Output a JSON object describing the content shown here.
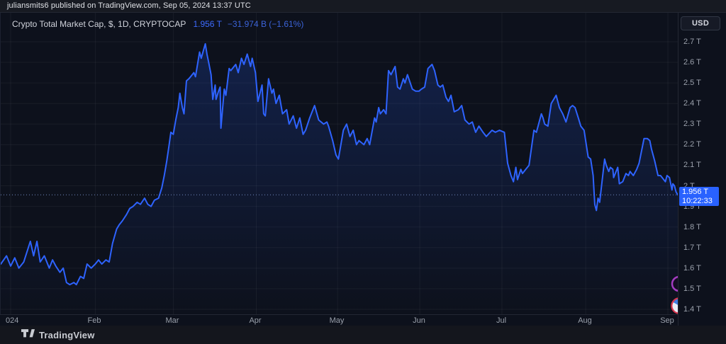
{
  "attribution": {
    "text": "juliansmits6 published on TradingView.com, Sep 05, 2024 13:37 UTC"
  },
  "legend": {
    "title": "Crypto Total Market Cap, $, 1D, CRYPTOCAP",
    "value": "1.956 T",
    "change": "−31.974 B (−1.61%)"
  },
  "price_scale": {
    "currency_button": "USD",
    "current_price_label": "1.956 T",
    "countdown": "10:22:33",
    "y_ticks": [
      {
        "v": 2.7,
        "label": "2.7 T"
      },
      {
        "v": 2.6,
        "label": "2.6 T"
      },
      {
        "v": 2.5,
        "label": "2.5 T"
      },
      {
        "v": 2.4,
        "label": "2.4 T"
      },
      {
        "v": 2.3,
        "label": "2.3 T"
      },
      {
        "v": 2.2,
        "label": "2.2 T"
      },
      {
        "v": 2.1,
        "label": "2.1 T"
      },
      {
        "v": 2.0,
        "label": "2 T"
      },
      {
        "v": 1.9,
        "label": "1.9 T"
      },
      {
        "v": 1.8,
        "label": "1.8 T"
      },
      {
        "v": 1.7,
        "label": "1.7 T"
      },
      {
        "v": 1.6,
        "label": "1.6 T"
      },
      {
        "v": 1.5,
        "label": "1.5 T"
      },
      {
        "v": 1.4,
        "label": "1.4 T"
      }
    ]
  },
  "time_scale": {
    "x_ticks": [
      {
        "label": "024",
        "t": 0.04,
        "year": true
      },
      {
        "label": "Feb",
        "t": 1.03
      },
      {
        "label": "Mar",
        "t": 1.98
      },
      {
        "label": "Apr",
        "t": 2.99
      },
      {
        "label": "May",
        "t": 3.98
      },
      {
        "label": "Jun",
        "t": 4.98
      },
      {
        "label": "Jul",
        "t": 5.98
      },
      {
        "label": "Aug",
        "t": 7.0
      },
      {
        "label": "Sep",
        "t": 8.0
      }
    ]
  },
  "footer": {
    "brand": "TradingView"
  },
  "colors": {
    "accent": "#2962ff",
    "line": "#2e63ff",
    "fill_top": "rgba(41,98,255,0.20)",
    "fill_bottom": "rgba(41,98,255,0.0)",
    "grid": "rgba(255,255,255,0.05)",
    "price_line": "#7489c0",
    "badge_bg": "#2962ff",
    "marker1_ring": "#a33cc0",
    "marker2_ring": "#d8374f",
    "marker2_fill": "#e8eef7",
    "marker2_wedge": "#3f7de0"
  },
  "chart_data": {
    "type": "area",
    "title": "Crypto Total Market Cap",
    "symbol": "CRYPTOCAP",
    "interval": "1D",
    "currency": "USD",
    "units": "trillions USD",
    "last_value_T": 1.956,
    "change_B": -31.974,
    "change_pct": -1.61,
    "ylim_T": [
      1.4,
      2.7
    ],
    "x_range": "Jan 2024 – Sep 05 2024",
    "x_unit": "months since Jan 1 2024",
    "legend_position": "top-left",
    "grid": true,
    "points": [
      [
        -0.12,
        1.62
      ],
      [
        -0.05,
        1.66
      ],
      [
        0,
        1.61
      ],
      [
        0.05,
        1.65
      ],
      [
        0.1,
        1.6
      ],
      [
        0.16,
        1.63
      ],
      [
        0.24,
        1.73
      ],
      [
        0.28,
        1.66
      ],
      [
        0.32,
        1.73
      ],
      [
        0.36,
        1.63
      ],
      [
        0.41,
        1.66
      ],
      [
        0.47,
        1.6
      ],
      [
        0.51,
        1.64
      ],
      [
        0.55,
        1.61
      ],
      [
        0.6,
        1.58
      ],
      [
        0.64,
        1.6
      ],
      [
        0.68,
        1.53
      ],
      [
        0.72,
        1.52
      ],
      [
        0.77,
        1.53
      ],
      [
        0.8,
        1.52
      ],
      [
        0.85,
        1.56
      ],
      [
        0.89,
        1.55
      ],
      [
        0.93,
        1.62
      ],
      [
        0.98,
        1.6
      ],
      [
        1.03,
        1.62
      ],
      [
        1.07,
        1.64
      ],
      [
        1.11,
        1.62
      ],
      [
        1.16,
        1.64
      ],
      [
        1.2,
        1.63
      ],
      [
        1.24,
        1.72
      ],
      [
        1.29,
        1.79
      ],
      [
        1.32,
        1.81
      ],
      [
        1.36,
        1.83
      ],
      [
        1.41,
        1.86
      ],
      [
        1.45,
        1.89
      ],
      [
        1.49,
        1.9
      ],
      [
        1.54,
        1.92
      ],
      [
        1.58,
        1.91
      ],
      [
        1.63,
        1.94
      ],
      [
        1.67,
        1.91
      ],
      [
        1.71,
        1.9
      ],
      [
        1.75,
        1.93
      ],
      [
        1.8,
        1.94
      ],
      [
        1.84,
        1.99
      ],
      [
        1.87,
        2.05
      ],
      [
        1.9,
        2.12
      ],
      [
        1.93,
        2.2
      ],
      [
        1.95,
        2.26
      ],
      [
        1.98,
        2.25
      ],
      [
        2.01,
        2.32
      ],
      [
        2.04,
        2.38
      ],
      [
        2.06,
        2.45
      ],
      [
        2.09,
        2.38
      ],
      [
        2.11,
        2.35
      ],
      [
        2.14,
        2.51
      ],
      [
        2.17,
        2.52
      ],
      [
        2.19,
        2.53
      ],
      [
        2.23,
        2.55
      ],
      [
        2.25,
        2.53
      ],
      [
        2.3,
        2.65
      ],
      [
        2.32,
        2.62
      ],
      [
        2.37,
        2.69
      ],
      [
        2.39,
        2.64
      ],
      [
        2.41,
        2.6
      ],
      [
        2.44,
        2.54
      ],
      [
        2.46,
        2.42
      ],
      [
        2.49,
        2.49
      ],
      [
        2.5,
        2.42
      ],
      [
        2.53,
        2.46
      ],
      [
        2.55,
        2.48
      ],
      [
        2.56,
        2.28
      ],
      [
        2.6,
        2.47
      ],
      [
        2.62,
        2.44
      ],
      [
        2.66,
        2.57
      ],
      [
        2.68,
        2.56
      ],
      [
        2.74,
        2.59
      ],
      [
        2.77,
        2.55
      ],
      [
        2.81,
        2.62
      ],
      [
        2.84,
        2.59
      ],
      [
        2.88,
        2.64
      ],
      [
        2.92,
        2.58
      ],
      [
        2.94,
        2.62
      ],
      [
        2.98,
        2.55
      ],
      [
        3.01,
        2.41
      ],
      [
        3.06,
        2.49
      ],
      [
        3.08,
        2.35
      ],
      [
        3.1,
        2.34
      ],
      [
        3.14,
        2.52
      ],
      [
        3.18,
        2.45
      ],
      [
        3.2,
        2.47
      ],
      [
        3.23,
        2.4
      ],
      [
        3.27,
        2.44
      ],
      [
        3.31,
        2.35
      ],
      [
        3.36,
        2.37
      ],
      [
        3.39,
        2.3
      ],
      [
        3.44,
        2.34
      ],
      [
        3.48,
        2.28
      ],
      [
        3.52,
        2.33
      ],
      [
        3.56,
        2.25
      ],
      [
        3.59,
        2.27
      ],
      [
        3.64,
        2.33
      ],
      [
        3.7,
        2.39
      ],
      [
        3.75,
        2.32
      ],
      [
        3.81,
        2.3
      ],
      [
        3.85,
        2.31
      ],
      [
        3.87,
        2.29
      ],
      [
        3.92,
        2.22
      ],
      [
        3.96,
        2.15
      ],
      [
        3.99,
        2.13
      ],
      [
        4.05,
        2.27
      ],
      [
        4.09,
        2.3
      ],
      [
        4.13,
        2.24
      ],
      [
        4.17,
        2.27
      ],
      [
        4.21,
        2.2
      ],
      [
        4.24,
        2.22
      ],
      [
        4.3,
        2.2
      ],
      [
        4.34,
        2.23
      ],
      [
        4.37,
        2.2
      ],
      [
        4.43,
        2.33
      ],
      [
        4.45,
        2.31
      ],
      [
        4.48,
        2.38
      ],
      [
        4.5,
        2.35
      ],
      [
        4.54,
        2.37
      ],
      [
        4.57,
        2.35
      ],
      [
        4.6,
        2.56
      ],
      [
        4.63,
        2.54
      ],
      [
        4.68,
        2.58
      ],
      [
        4.71,
        2.48
      ],
      [
        4.74,
        2.47
      ],
      [
        4.78,
        2.52
      ],
      [
        4.8,
        2.5
      ],
      [
        4.83,
        2.54
      ],
      [
        4.89,
        2.47
      ],
      [
        4.93,
        2.46
      ],
      [
        4.97,
        2.46
      ],
      [
        5,
        2.47
      ],
      [
        5.04,
        2.48
      ],
      [
        5.08,
        2.57
      ],
      [
        5.13,
        2.59
      ],
      [
        5.16,
        2.56
      ],
      [
        5.2,
        2.49
      ],
      [
        5.23,
        2.48
      ],
      [
        5.26,
        2.49
      ],
      [
        5.3,
        2.43
      ],
      [
        5.33,
        2.41
      ],
      [
        5.36,
        2.44
      ],
      [
        5.4,
        2.36
      ],
      [
        5.45,
        2.37
      ],
      [
        5.49,
        2.39
      ],
      [
        5.53,
        2.32
      ],
      [
        5.58,
        2.3
      ],
      [
        5.62,
        2.31
      ],
      [
        5.66,
        2.26
      ],
      [
        5.7,
        2.29
      ],
      [
        5.75,
        2.26
      ],
      [
        5.79,
        2.24
      ],
      [
        5.86,
        2.27
      ],
      [
        5.9,
        2.26
      ],
      [
        5.95,
        2.27
      ],
      [
        6.01,
        2.26
      ],
      [
        6.05,
        2.11
      ],
      [
        6.09,
        2.05
      ],
      [
        6.12,
        2.02
      ],
      [
        6.15,
        2.09
      ],
      [
        6.17,
        2.03
      ],
      [
        6.21,
        2.08
      ],
      [
        6.23,
        2.06
      ],
      [
        6.27,
        2.08
      ],
      [
        6.31,
        2.1
      ],
      [
        6.37,
        2.27
      ],
      [
        6.4,
        2.26
      ],
      [
        6.46,
        2.35
      ],
      [
        6.48,
        2.33
      ],
      [
        6.5,
        2.3
      ],
      [
        6.54,
        2.29
      ],
      [
        6.58,
        2.4
      ],
      [
        6.64,
        2.44
      ],
      [
        6.68,
        2.38
      ],
      [
        6.72,
        2.35
      ],
      [
        6.76,
        2.31
      ],
      [
        6.81,
        2.38
      ],
      [
        6.84,
        2.39
      ],
      [
        6.87,
        2.38
      ],
      [
        6.91,
        2.33
      ],
      [
        6.94,
        2.29
      ],
      [
        6.98,
        2.27
      ],
      [
        7.03,
        2.14
      ],
      [
        7.06,
        2.13
      ],
      [
        7.09,
        2.05
      ],
      [
        7.11,
        1.91
      ],
      [
        7.13,
        1.88
      ],
      [
        7.15,
        1.94
      ],
      [
        7.17,
        1.92
      ],
      [
        7.23,
        2.13
      ],
      [
        7.25,
        2.1
      ],
      [
        7.28,
        2.07
      ],
      [
        7.3,
        2.09
      ],
      [
        7.33,
        2.08
      ],
      [
        7.34,
        2.04
      ],
      [
        7.39,
        2.09
      ],
      [
        7.41,
        2.01
      ],
      [
        7.45,
        2.02
      ],
      [
        7.49,
        2.06
      ],
      [
        7.52,
        2.05
      ],
      [
        7.54,
        2.07
      ],
      [
        7.58,
        2.05
      ],
      [
        7.62,
        2.08
      ],
      [
        7.65,
        2.11
      ],
      [
        7.71,
        2.23
      ],
      [
        7.75,
        2.23
      ],
      [
        7.78,
        2.22
      ],
      [
        7.8,
        2.18
      ],
      [
        7.84,
        2.12
      ],
      [
        7.88,
        2.05
      ],
      [
        7.91,
        2.05
      ],
      [
        7.93,
        2.04
      ],
      [
        7.97,
        2.02
      ],
      [
        7.99,
        2.05
      ],
      [
        8.02,
        2.04
      ],
      [
        8.05,
        1.98
      ],
      [
        8.06,
        2.01
      ],
      [
        8.08,
        2
      ],
      [
        8.1,
        1.97
      ],
      [
        8.12,
        1.956
      ]
    ]
  }
}
